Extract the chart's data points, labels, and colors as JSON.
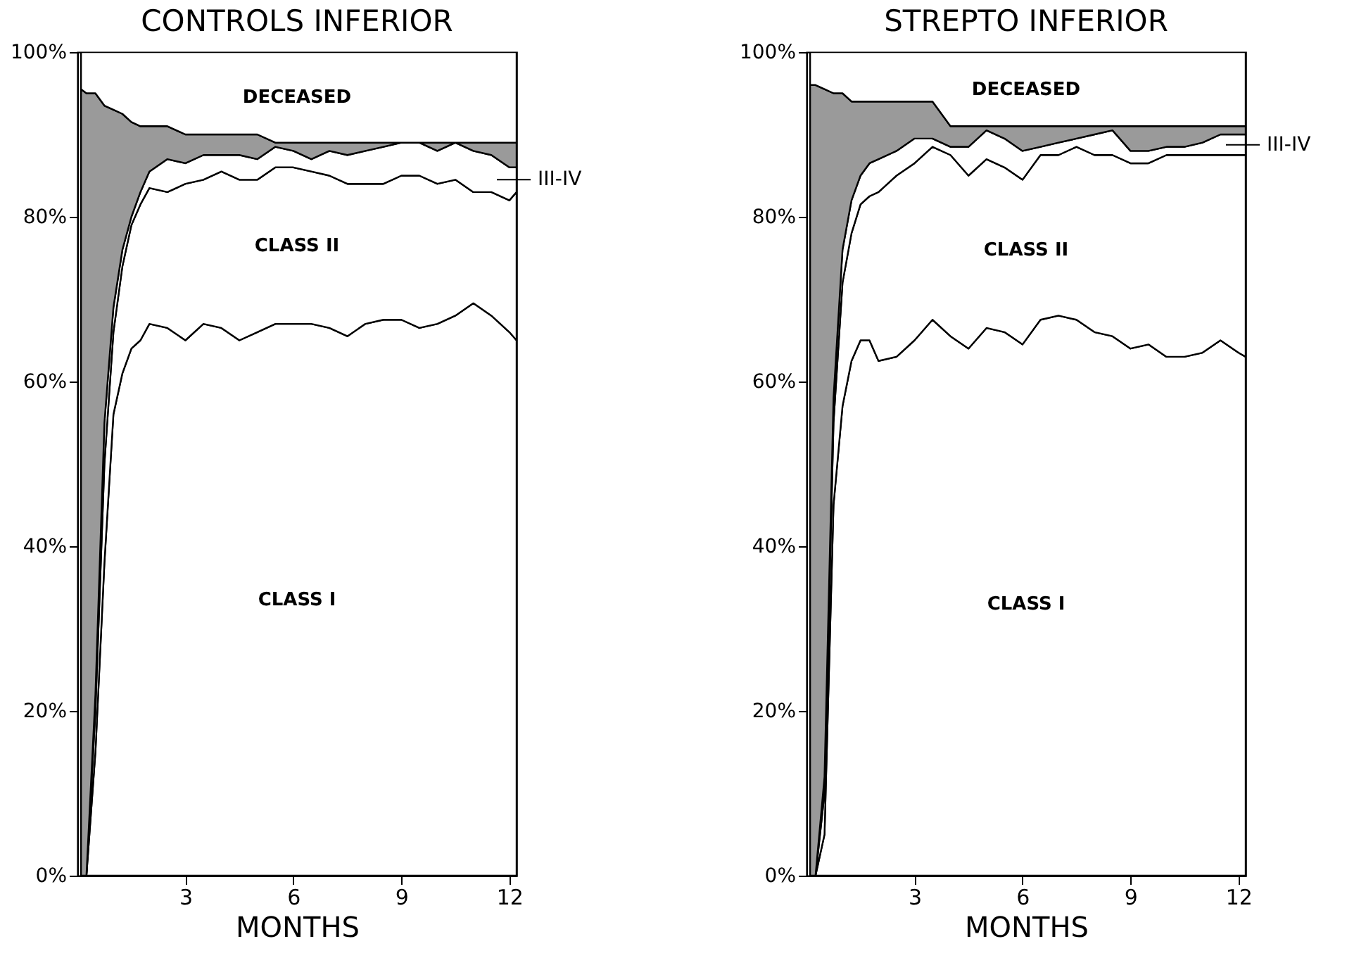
{
  "chart_data": [
    {
      "type": "area",
      "title": "CONTROLS INFERIOR",
      "xlabel": "MONTHS",
      "stacked": true,
      "grid": false,
      "x": [
        0.1,
        0.25,
        0.5,
        0.75,
        1,
        1.25,
        1.5,
        1.75,
        2,
        2.5,
        3,
        3.5,
        4,
        4.5,
        5,
        5.5,
        6,
        6.5,
        7,
        7.5,
        8,
        8.5,
        9,
        9.5,
        10,
        10.5,
        11,
        11.5,
        12,
        12.2
      ],
      "xlim": [
        0,
        12.2
      ],
      "xticks": [
        3,
        6,
        9,
        12
      ],
      "ylim": [
        0,
        100
      ],
      "yticks": [
        {
          "value": 0,
          "label": "0%"
        },
        {
          "value": 20,
          "label": "20%"
        },
        {
          "value": 40,
          "label": "40%"
        },
        {
          "value": 60,
          "label": "60%"
        },
        {
          "value": 80,
          "label": "80%"
        },
        {
          "value": 100,
          "label": "100%"
        }
      ],
      "series": [
        {
          "name": "CLASS I",
          "color": "#ffffff",
          "values": [
            0,
            0,
            15,
            38,
            56,
            61,
            64,
            65,
            67,
            66.5,
            65,
            67,
            66.5,
            65,
            66,
            67,
            67,
            67,
            66.5,
            65.5,
            67,
            67.5,
            67.5,
            66.5,
            67,
            68,
            69.5,
            68,
            66,
            65
          ]
        },
        {
          "name": "CLASS II",
          "color": "#ffffff",
          "values": [
            0,
            0,
            5,
            12,
            10,
            13,
            15,
            16.5,
            16.5,
            16.5,
            19,
            17.5,
            19,
            19.5,
            18.5,
            19,
            19,
            18.5,
            18.5,
            18.5,
            17,
            16.5,
            17.5,
            18.5,
            17,
            16.5,
            13.5,
            15,
            16,
            18
          ]
        },
        {
          "name": "III-IV",
          "color": "#ffffff",
          "values": [
            0,
            0,
            2,
            5,
            3,
            2,
            1,
            1.5,
            2,
            4,
            2.5,
            3,
            2,
            3,
            2.5,
            2.5,
            2,
            1.5,
            3,
            3.5,
            4,
            4.5,
            4,
            4,
            4,
            4.5,
            5,
            4.5,
            4,
            3
          ]
        },
        {
          "color": "#9a9a9a",
          "values": [
            95.5,
            95,
            73,
            38.5,
            24,
            16.5,
            11.5,
            8,
            5.5,
            4,
            3.5,
            2.5,
            2.5,
            2.5,
            3,
            0.5,
            1,
            2,
            1,
            1.5,
            1,
            0.5,
            0,
            0,
            1,
            0,
            1,
            1.5,
            3,
            3
          ]
        },
        {
          "name": "DECEASED",
          "color": "#ffffff",
          "values": [
            4.5,
            5,
            5,
            6.5,
            7,
            7.5,
            8.5,
            9,
            9,
            9,
            10,
            10,
            10,
            10,
            10,
            11,
            11,
            11,
            11,
            11,
            11,
            11,
            11,
            11,
            11,
            11,
            11,
            11,
            11,
            11
          ]
        }
      ]
    },
    {
      "type": "area",
      "title": "STREPTO  INFERIOR",
      "xlabel": "MONTHS",
      "stacked": true,
      "grid": false,
      "x": [
        0.1,
        0.25,
        0.5,
        0.75,
        1,
        1.25,
        1.5,
        1.75,
        2,
        2.5,
        3,
        3.5,
        4,
        4.5,
        5,
        5.5,
        6,
        6.5,
        7,
        7.5,
        8,
        8.5,
        9,
        9.5,
        10,
        10.5,
        11,
        11.5,
        12,
        12.2
      ],
      "xlim": [
        0,
        12.2
      ],
      "xticks": [
        3,
        6,
        9,
        12
      ],
      "ylim": [
        0,
        100
      ],
      "yticks": [
        {
          "value": 0,
          "label": "0%"
        },
        {
          "value": 20,
          "label": "20%"
        },
        {
          "value": 40,
          "label": "40%"
        },
        {
          "value": 60,
          "label": "60%"
        },
        {
          "value": 80,
          "label": "80%"
        },
        {
          "value": 100,
          "label": "100%"
        }
      ],
      "series": [
        {
          "name": "CLASS I",
          "color": "#ffffff",
          "values": [
            0,
            0,
            5,
            45,
            57,
            62.5,
            65,
            65,
            62.5,
            63,
            65,
            67.5,
            65.5,
            64,
            66.5,
            66,
            64.5,
            67.5,
            68,
            67.5,
            66,
            65.5,
            64,
            64.5,
            63,
            63,
            63.5,
            65,
            63.5,
            63
          ]
        },
        {
          "name": "CLASS II",
          "color": "#ffffff",
          "values": [
            0,
            0,
            5,
            10,
            15,
            15.5,
            16.5,
            17.5,
            20.5,
            22,
            21.5,
            21,
            22,
            21,
            20.5,
            20,
            20,
            20,
            19.5,
            21,
            21.5,
            22,
            22.5,
            22,
            24.5,
            24.5,
            24,
            22.5,
            24,
            24.5
          ]
        },
        {
          "name": "III-IV",
          "color": "#ffffff",
          "values": [
            0,
            0,
            2,
            3,
            4,
            4,
            3.5,
            4,
            4,
            3,
            3,
            1,
            1,
            3.5,
            3.5,
            3.5,
            3.5,
            1,
            1.5,
            1,
            2.5,
            3,
            1.5,
            1.5,
            1,
            1,
            1.5,
            2.5,
            2.5,
            2.5
          ]
        },
        {
          "color": "#9a9a9a",
          "values": [
            96,
            96,
            83.5,
            37,
            19,
            12,
            9,
            7.5,
            7,
            6,
            4.5,
            4.5,
            2.5,
            2.5,
            0.5,
            1.5,
            3,
            2.5,
            2,
            1.5,
            1,
            0.5,
            3,
            3,
            2.5,
            2.5,
            2,
            1,
            1,
            1
          ]
        },
        {
          "name": "DECEASED",
          "color": "#ffffff",
          "values": [
            4,
            4,
            4.5,
            5,
            5,
            6,
            6,
            6,
            6,
            6,
            6,
            6,
            9,
            9,
            9,
            9,
            9,
            9,
            9,
            9,
            9,
            9,
            9,
            9,
            9,
            9,
            9,
            9,
            9,
            9
          ]
        }
      ]
    }
  ]
}
